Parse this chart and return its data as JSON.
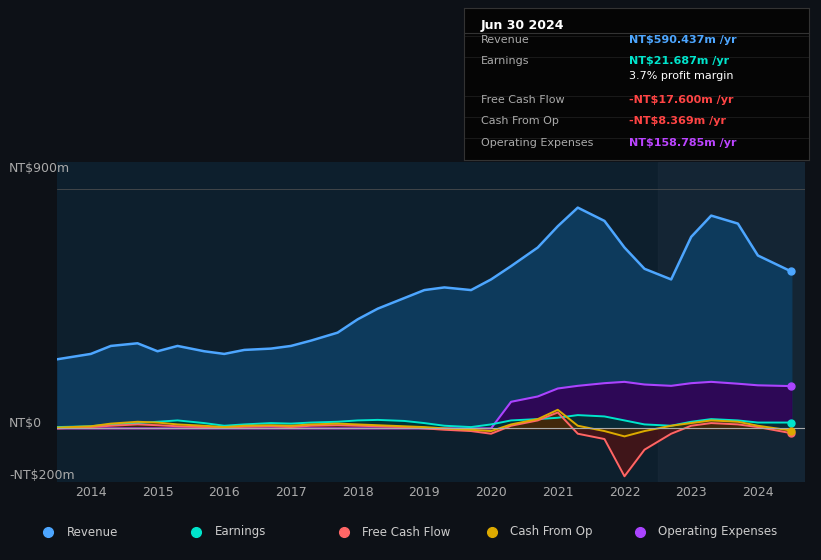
{
  "bg_color": "#0d1117",
  "chart_bg": "#0d1f2d",
  "title": "Jun 30 2024",
  "info_box": {
    "bg": "#050505",
    "rows": [
      {
        "label": "Revenue",
        "value": "NT$590.437m /yr",
        "color": "#4da6ff"
      },
      {
        "label": "Earnings",
        "value": "NT$21.687m /yr",
        "color": "#00e5cc"
      },
      {
        "label": "",
        "value": "3.7% profit margin",
        "color": "#ffffff"
      },
      {
        "label": "Free Cash Flow",
        "value": "-NT$17.600m /yr",
        "color": "#ff4444"
      },
      {
        "label": "Cash From Op",
        "value": "-NT$8.369m /yr",
        "color": "#ff4444"
      },
      {
        "label": "Operating Expenses",
        "value": "NT$158.785m /yr",
        "color": "#bb44ff"
      }
    ]
  },
  "ylabel_top": "NT$900m",
  "ylabel_zero": "NT$0",
  "ylabel_bottom": "-NT$200m",
  "ylim": [
    -200,
    1000
  ],
  "xlim": [
    2013.5,
    2024.7
  ],
  "xticks": [
    2014,
    2015,
    2016,
    2017,
    2018,
    2019,
    2020,
    2021,
    2022,
    2023,
    2024
  ],
  "series": {
    "revenue": {
      "color": "#4da6ff",
      "fill": "#0d3a5c",
      "label": "Revenue",
      "x": [
        2013.5,
        2014.0,
        2014.3,
        2014.7,
        2015.0,
        2015.3,
        2015.7,
        2016.0,
        2016.3,
        2016.7,
        2017.0,
        2017.3,
        2017.7,
        2018.0,
        2018.3,
        2018.7,
        2019.0,
        2019.3,
        2019.7,
        2020.0,
        2020.3,
        2020.7,
        2021.0,
        2021.3,
        2021.7,
        2022.0,
        2022.3,
        2022.7,
        2023.0,
        2023.3,
        2023.7,
        2024.0,
        2024.5
      ],
      "y": [
        260,
        280,
        310,
        320,
        290,
        310,
        290,
        280,
        295,
        300,
        310,
        330,
        360,
        410,
        450,
        490,
        520,
        530,
        520,
        560,
        610,
        680,
        760,
        830,
        780,
        680,
        600,
        560,
        720,
        800,
        770,
        650,
        590
      ]
    },
    "earnings": {
      "color": "#00e5cc",
      "fill": "#003330",
      "label": "Earnings",
      "x": [
        2013.5,
        2014.0,
        2014.3,
        2014.7,
        2015.0,
        2015.3,
        2015.7,
        2016.0,
        2016.3,
        2016.7,
        2017.0,
        2017.3,
        2017.7,
        2018.0,
        2018.3,
        2018.7,
        2019.0,
        2019.3,
        2019.7,
        2020.0,
        2020.3,
        2020.7,
        2021.0,
        2021.3,
        2021.7,
        2022.0,
        2022.3,
        2022.7,
        2023.0,
        2023.3,
        2023.7,
        2024.0,
        2024.5
      ],
      "y": [
        5,
        8,
        15,
        20,
        25,
        30,
        20,
        10,
        15,
        20,
        18,
        22,
        25,
        30,
        32,
        28,
        20,
        10,
        5,
        15,
        30,
        35,
        40,
        50,
        45,
        30,
        15,
        10,
        25,
        35,
        30,
        22,
        22
      ]
    },
    "free_cash_flow": {
      "color": "#ff6666",
      "fill": "#551111",
      "label": "Free Cash Flow",
      "x": [
        2013.5,
        2014.0,
        2014.3,
        2014.7,
        2015.0,
        2015.3,
        2015.7,
        2016.0,
        2016.3,
        2016.7,
        2017.0,
        2017.3,
        2017.7,
        2018.0,
        2018.3,
        2018.7,
        2019.0,
        2019.3,
        2019.7,
        2020.0,
        2020.3,
        2020.7,
        2021.0,
        2021.3,
        2021.7,
        2022.0,
        2022.3,
        2022.7,
        2023.0,
        2023.3,
        2023.7,
        2024.0,
        2024.5
      ],
      "y": [
        0,
        5,
        10,
        15,
        12,
        8,
        5,
        3,
        6,
        8,
        5,
        10,
        12,
        10,
        8,
        5,
        0,
        -5,
        -10,
        -20,
        10,
        30,
        60,
        -20,
        -40,
        -180,
        -80,
        -20,
        10,
        20,
        15,
        5,
        -18
      ]
    },
    "cash_from_op": {
      "color": "#ddaa00",
      "fill": "#443300",
      "label": "Cash From Op",
      "x": [
        2013.5,
        2014.0,
        2014.3,
        2014.7,
        2015.0,
        2015.3,
        2015.7,
        2016.0,
        2016.3,
        2016.7,
        2017.0,
        2017.3,
        2017.7,
        2018.0,
        2018.3,
        2018.7,
        2019.0,
        2019.3,
        2019.7,
        2020.0,
        2020.3,
        2020.7,
        2021.0,
        2021.3,
        2021.7,
        2022.0,
        2022.3,
        2022.7,
        2023.0,
        2023.3,
        2023.7,
        2024.0,
        2024.5
      ],
      "y": [
        3,
        8,
        18,
        25,
        22,
        15,
        10,
        5,
        10,
        12,
        10,
        15,
        18,
        15,
        12,
        8,
        5,
        0,
        -5,
        -10,
        15,
        35,
        70,
        10,
        -10,
        -30,
        -10,
        10,
        20,
        30,
        25,
        10,
        -8
      ]
    },
    "operating_expenses": {
      "color": "#aa44ff",
      "fill": "#330055",
      "label": "Operating Expenses",
      "x": [
        2013.5,
        2014.0,
        2014.3,
        2014.7,
        2015.0,
        2015.3,
        2015.7,
        2016.0,
        2016.3,
        2016.7,
        2017.0,
        2017.3,
        2017.7,
        2018.0,
        2018.3,
        2018.7,
        2019.0,
        2019.3,
        2019.7,
        2020.0,
        2020.3,
        2020.7,
        2021.0,
        2021.3,
        2021.7,
        2022.0,
        2022.3,
        2022.7,
        2023.0,
        2023.3,
        2023.7,
        2024.0,
        2024.5
      ],
      "y": [
        0,
        0,
        0,
        0,
        0,
        0,
        0,
        0,
        0,
        0,
        0,
        0,
        0,
        0,
        0,
        0,
        0,
        0,
        0,
        0,
        100,
        120,
        150,
        160,
        170,
        175,
        165,
        160,
        170,
        175,
        168,
        162,
        159
      ]
    }
  },
  "legend": [
    {
      "label": "Revenue",
      "color": "#4da6ff"
    },
    {
      "label": "Earnings",
      "color": "#00e5cc"
    },
    {
      "label": "Free Cash Flow",
      "color": "#ff6666"
    },
    {
      "label": "Cash From Op",
      "color": "#ddaa00"
    },
    {
      "label": "Operating Expenses",
      "color": "#aa44ff"
    }
  ],
  "shaded_region_start": 2022.5,
  "shaded_region_color": "#1a2a3a"
}
